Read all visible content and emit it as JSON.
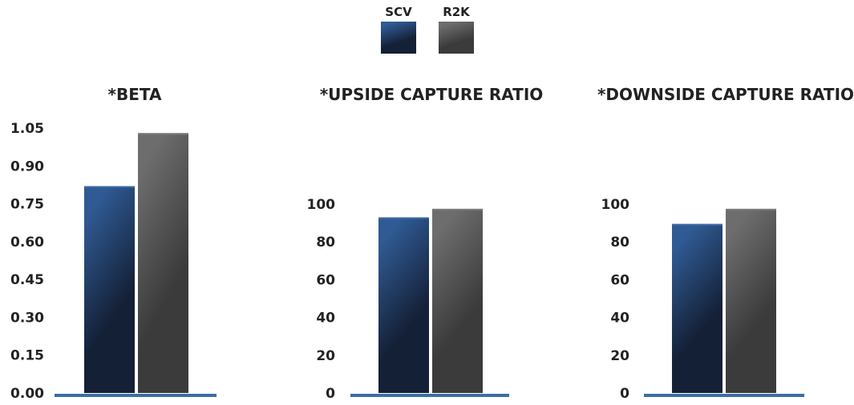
{
  "legend": {
    "items": [
      {
        "label": "SCV",
        "color": "#2e5488"
      },
      {
        "label": "R2K",
        "color": "#5f5f5f"
      }
    ]
  },
  "colors": {
    "scv_top": "#2f5a93",
    "scv_bottom": "#142036",
    "r2k_top": "#6d6d6d",
    "r2k_bottom": "#3b3b3b",
    "baseline": "#3a6ea5"
  },
  "chart_data": [
    {
      "type": "bar",
      "title": "*BETA",
      "series": [
        {
          "name": "SCV",
          "values": [
            0.82
          ]
        },
        {
          "name": "R2K",
          "values": [
            1.03
          ]
        }
      ],
      "yticks": [
        "0.00",
        "0.15",
        "0.30",
        "0.45",
        "0.60",
        "0.75",
        "0.90",
        "1.05"
      ],
      "ylim": [
        0,
        1.05
      ]
    },
    {
      "type": "bar",
      "title": "*UPSIDE CAPTURE RATIO",
      "series": [
        {
          "name": "SCV",
          "values": [
            93
          ]
        },
        {
          "name": "R2K",
          "values": [
            97.5
          ]
        }
      ],
      "yticks": [
        "0",
        "20",
        "40",
        "60",
        "80",
        "100"
      ],
      "ylim": [
        0,
        100
      ]
    },
    {
      "type": "bar",
      "title": "*DOWNSIDE CAPTURE RATIO",
      "series": [
        {
          "name": "SCV",
          "values": [
            89.5
          ]
        },
        {
          "name": "R2K",
          "values": [
            97.5
          ]
        }
      ],
      "yticks": [
        "0",
        "20",
        "40",
        "60",
        "80",
        "100"
      ],
      "ylim": [
        0,
        100
      ]
    }
  ]
}
